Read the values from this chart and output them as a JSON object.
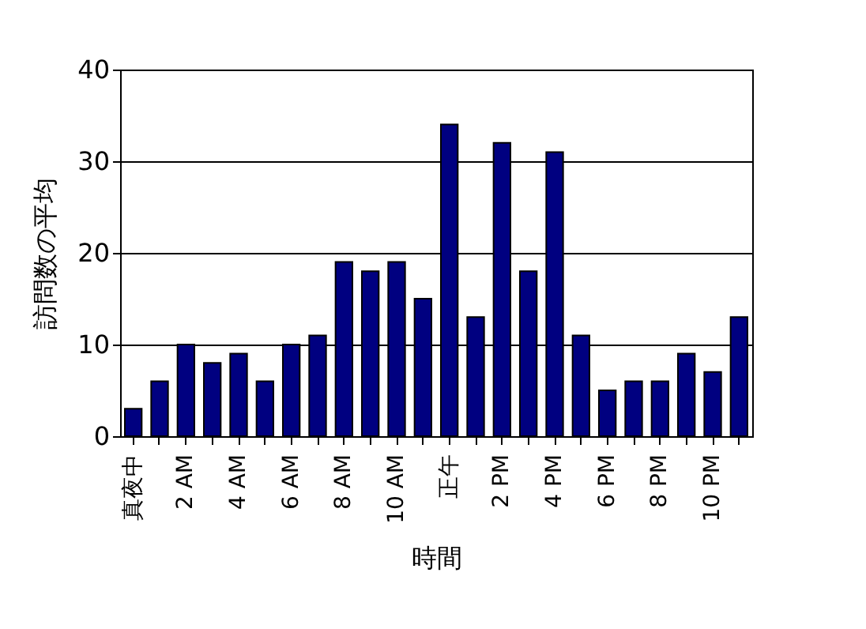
{
  "chart_data": {
    "type": "bar",
    "xlabel": "時間",
    "ylabel": "訪問数の平均",
    "categories": [
      "真夜中",
      null,
      "2 AM",
      null,
      "4 AM",
      null,
      "6 AM",
      null,
      "8 AM",
      null,
      "10 AM",
      null,
      "正午",
      null,
      "2 PM",
      null,
      "4 PM",
      null,
      "6 PM",
      null,
      "8 PM",
      null,
      "10 PM",
      null
    ],
    "values": [
      3,
      6,
      10,
      8,
      9,
      6,
      10,
      11,
      19,
      18,
      19,
      15,
      34,
      13,
      32,
      18,
      31,
      11,
      5,
      6,
      6,
      9,
      7,
      13
    ],
    "color": "#000080",
    "ylim": [
      0,
      40
    ],
    "yticks": [
      0,
      10,
      20,
      30,
      40
    ],
    "grid": "y"
  }
}
